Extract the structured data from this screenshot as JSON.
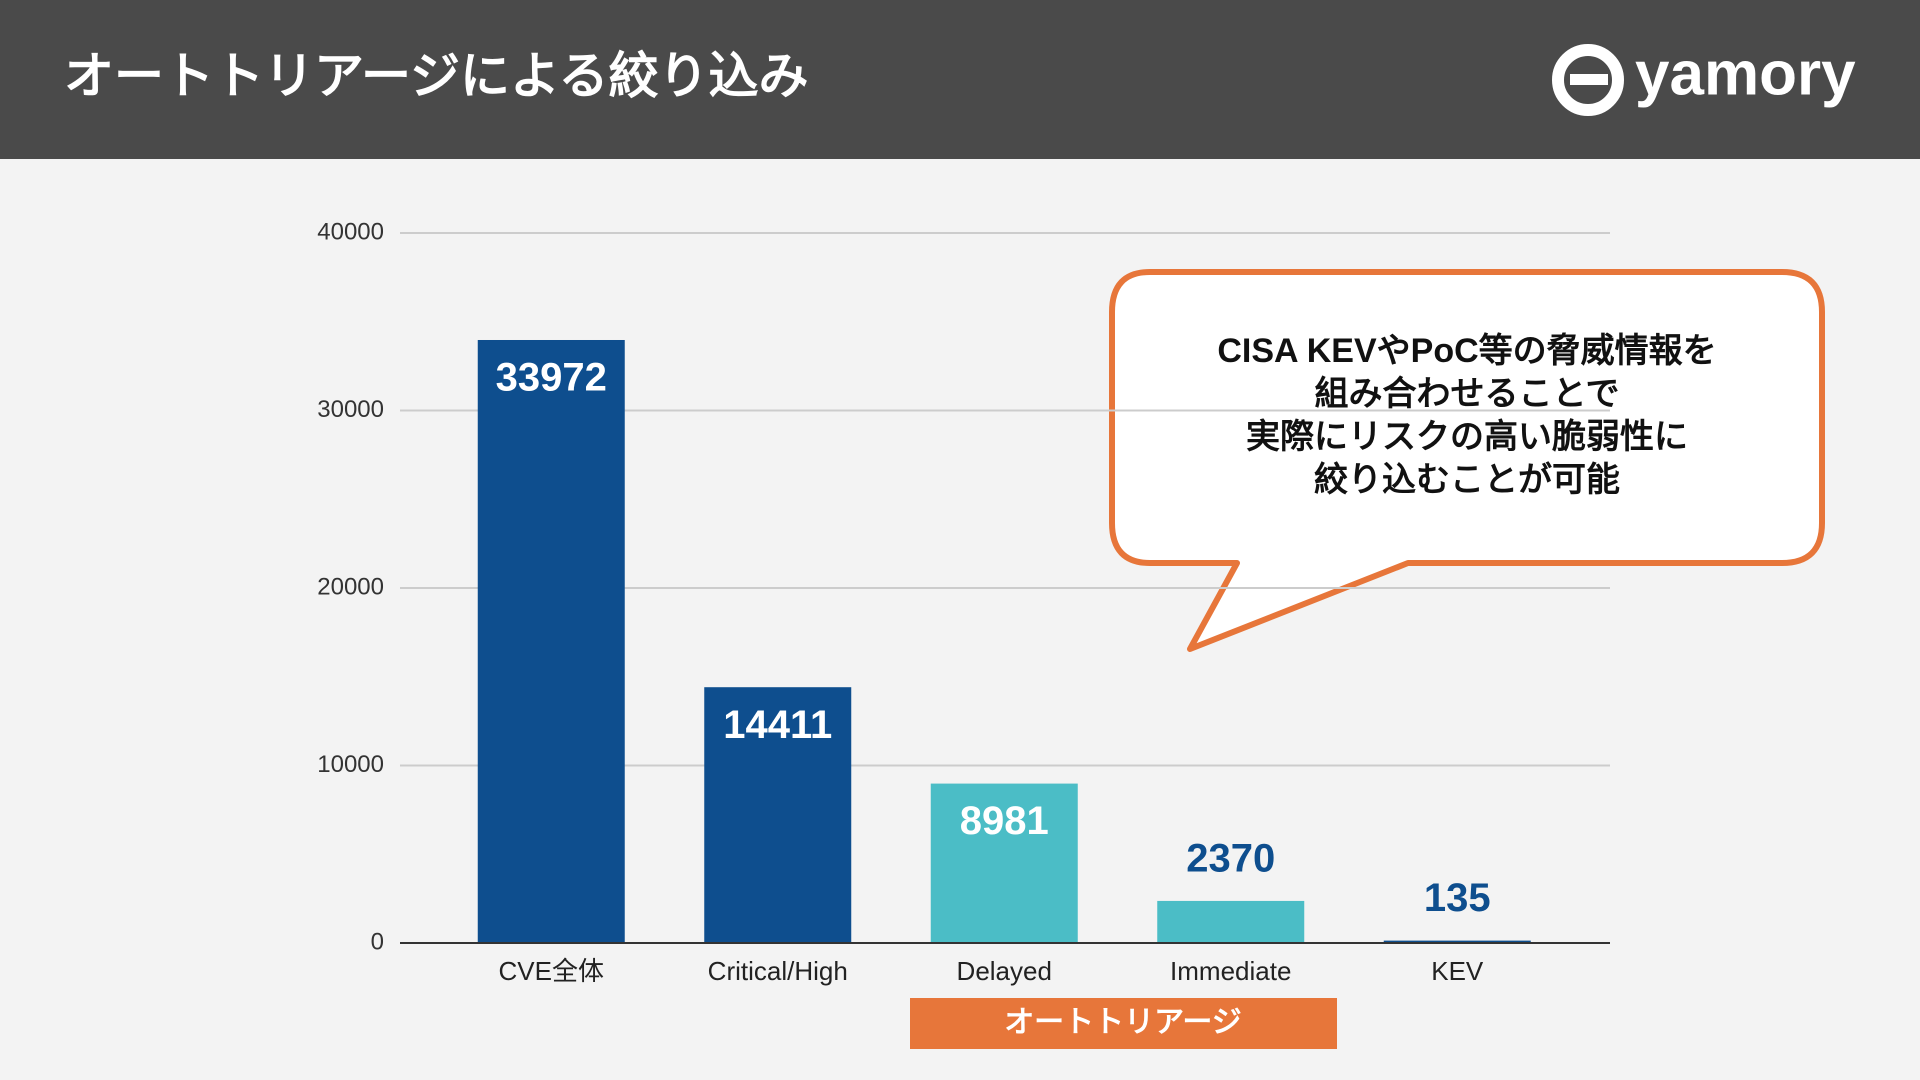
{
  "header": {
    "title": "オートトリアージによる絞り込み",
    "logo": "yamory"
  },
  "chart_data": {
    "type": "bar",
    "categories": [
      "CVE全体",
      "Critical/High",
      "Delayed",
      "Immediate",
      "KEV"
    ],
    "values": [
      33972,
      14411,
      8981,
      2370,
      135
    ],
    "colors": [
      "#0e4e8e",
      "#0e4e8e",
      "#4bbdc6",
      "#4bbdc6",
      "#0e4e8e"
    ],
    "ylim": [
      0,
      40000
    ],
    "yticks": [
      0,
      10000,
      20000,
      30000,
      40000
    ],
    "grid": true,
    "callout": [
      "CISA KEVやPoC等の脅威情報を",
      "組み合わせることで",
      "実際にリスクの高い脆弱性に",
      "絞り込むことが可能"
    ],
    "group_label": "オートトリアージ"
  }
}
